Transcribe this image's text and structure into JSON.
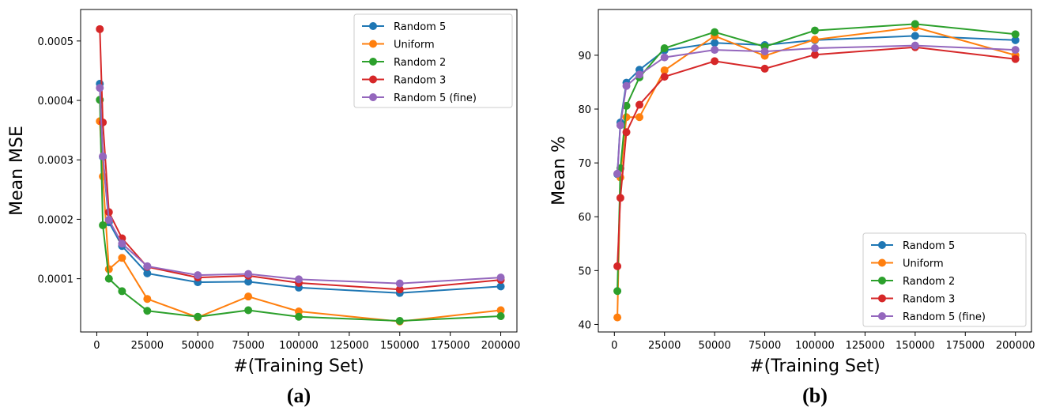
{
  "colors": {
    "Random 5": "#1f77b4",
    "Uniform": "#ff7f0e",
    "Random 2": "#2ca02c",
    "Random 3": "#d62728",
    "Random 5 (fine)": "#9467bd"
  },
  "chart_data": [
    {
      "type": "line",
      "caption": "(a)",
      "xlabel": "#(Training Set)",
      "ylabel": "Mean MSE",
      "xlim": [
        -8000,
        208000
      ],
      "ylim": [
        1.04e-05,
        0.000553
      ],
      "xticks": [
        0,
        25000,
        50000,
        75000,
        100000,
        125000,
        150000,
        175000,
        200000
      ],
      "xtick_labels": [
        "0",
        "25000",
        "50000",
        "75000",
        "100000",
        "125000",
        "150000",
        "175000",
        "200000"
      ],
      "yticks": [
        0.0001,
        0.0002,
        0.0003,
        0.0004,
        0.0005
      ],
      "ytick_labels": [
        "0.0001",
        "0.0002",
        "0.0003",
        "0.0004",
        "0.0005"
      ],
      "legend_loc": "upper right",
      "series": [
        {
          "name": "Random 5",
          "x": [
            1500,
            3000,
            6000,
            12500,
            25000,
            50000,
            75000,
            100000,
            150000,
            200000
          ],
          "y": [
            0.000428,
            0.000305,
            0.000195,
            0.000155,
            0.000109,
            9.4e-05,
            9.5e-05,
            8.5e-05,
            7.6e-05,
            8.7e-05
          ]
        },
        {
          "name": "Uniform",
          "x": [
            1500,
            3000,
            6000,
            12500,
            25000,
            50000,
            75000,
            100000,
            150000,
            200000
          ],
          "y": [
            0.000365,
            0.000272,
            0.000116,
            0.000135,
            6.6e-05,
            3.5e-05,
            7e-05,
            4.5e-05,
            2.8e-05,
            4.7e-05
          ]
        },
        {
          "name": "Random 2",
          "x": [
            1500,
            3000,
            6000,
            12500,
            25000,
            50000,
            75000,
            100000,
            150000,
            200000
          ],
          "y": [
            0.000401,
            0.00019,
            0.0001,
            7.9e-05,
            4.6e-05,
            3.6e-05,
            4.7e-05,
            3.6e-05,
            2.9e-05,
            3.7e-05
          ]
        },
        {
          "name": "Random 3",
          "x": [
            1500,
            3000,
            6000,
            12500,
            25000,
            50000,
            75000,
            100000,
            150000,
            200000
          ],
          "y": [
            0.00052,
            0.000363,
            0.000212,
            0.000168,
            0.00012,
            0.000102,
            0.000105,
            9.3e-05,
            8.2e-05,
            9.8e-05
          ]
        },
        {
          "name": "Random 5 (fine)",
          "x": [
            1500,
            3000,
            6000,
            12500,
            25000,
            50000,
            75000,
            100000,
            150000,
            200000
          ],
          "y": [
            0.000421,
            0.000306,
            0.000199,
            0.000159,
            0.000121,
            0.000106,
            0.000108,
            9.9e-05,
            9.2e-05,
            0.000102
          ]
        }
      ]
    },
    {
      "type": "line",
      "caption": "(b)",
      "xlabel": "#(Training Set)",
      "ylabel": "Mean %",
      "xlim": [
        -8000,
        208000
      ],
      "ylim": [
        38.6,
        98.5
      ],
      "xticks": [
        0,
        25000,
        50000,
        75000,
        100000,
        125000,
        150000,
        175000,
        200000
      ],
      "xtick_labels": [
        "0",
        "25000",
        "50000",
        "75000",
        "100000",
        "125000",
        "150000",
        "175000",
        "200000"
      ],
      "yticks": [
        40,
        50,
        60,
        70,
        80,
        90
      ],
      "ytick_labels": [
        "40",
        "50",
        "60",
        "70",
        "80",
        "90"
      ],
      "legend_loc": "lower right",
      "series": [
        {
          "name": "Random 5",
          "x": [
            1500,
            3000,
            6000,
            12500,
            25000,
            50000,
            75000,
            100000,
            150000,
            200000
          ],
          "y": [
            67.9,
            77.5,
            84.9,
            87.3,
            90.9,
            92.3,
            91.9,
            92.8,
            93.6,
            92.8
          ]
        },
        {
          "name": "Uniform",
          "x": [
            1500,
            3000,
            6000,
            12500,
            25000,
            50000,
            75000,
            100000,
            150000,
            200000
          ],
          "y": [
            41.3,
            67.3,
            78.5,
            78.5,
            87.2,
            93.6,
            89.9,
            92.9,
            95.2,
            90.0
          ]
        },
        {
          "name": "Random 2",
          "x": [
            1500,
            3000,
            6000,
            12500,
            25000,
            50000,
            75000,
            100000,
            150000,
            200000
          ],
          "y": [
            46.2,
            69.0,
            80.6,
            85.9,
            91.3,
            94.3,
            91.6,
            94.6,
            95.8,
            93.9
          ]
        },
        {
          "name": "Random 3",
          "x": [
            1500,
            3000,
            6000,
            12500,
            25000,
            50000,
            75000,
            100000,
            150000,
            200000
          ],
          "y": [
            50.8,
            63.5,
            75.7,
            80.8,
            86.0,
            88.9,
            87.5,
            90.1,
            91.5,
            89.3
          ]
        },
        {
          "name": "Random 5 (fine)",
          "x": [
            1500,
            3000,
            6000,
            12500,
            25000,
            50000,
            75000,
            100000,
            150000,
            200000
          ],
          "y": [
            68.0,
            77.0,
            84.3,
            86.4,
            89.6,
            91.0,
            90.7,
            91.3,
            91.8,
            91.0
          ]
        }
      ]
    }
  ]
}
